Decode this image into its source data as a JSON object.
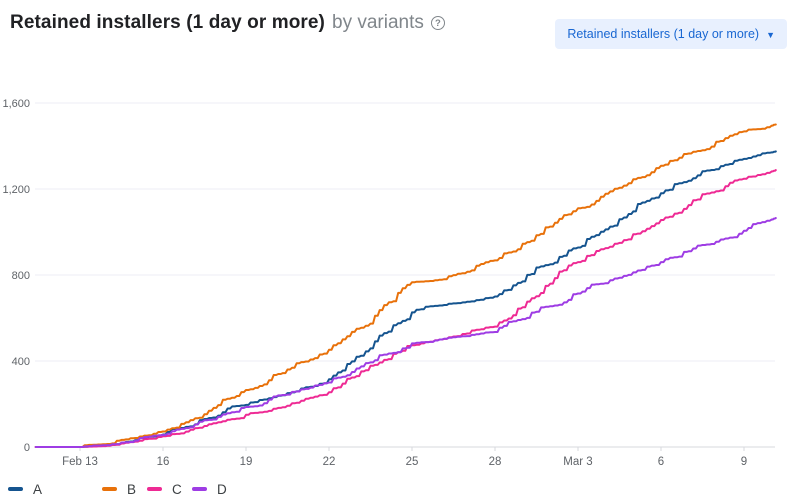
{
  "header": {
    "title": "Retained installers (1 day or more)",
    "subtitle": "by variants",
    "help_glyph": "?"
  },
  "metric_dropdown": {
    "label": "Retained installers (1 day or more)",
    "caret": "▼"
  },
  "colors": {
    "accent_blue": "#1967d2",
    "dropdown_bg": "#e8f0fe",
    "grid": "#eceef4",
    "axis_line": "#d7d9dd",
    "tick_label": "#5f6368",
    "title_text": "#202124",
    "subtitle_text": "#80868b"
  },
  "chart_data": {
    "type": "line",
    "title": "Retained installers (1 day or more) by variants",
    "xlabel": "",
    "ylabel": "",
    "ylim": [
      0,
      1600
    ],
    "grid": "horizontal",
    "legend_position": "bottom",
    "x_note": "x values are day numbers: 13 = Feb 13, 28 = Feb 28, 31 = Mar 3, 37 = Mar 9",
    "x": [
      11.4,
      12,
      13,
      14,
      15,
      16,
      17,
      18,
      19,
      20,
      21,
      22,
      23,
      24,
      25,
      26,
      27,
      28,
      29,
      30,
      31,
      32,
      33,
      34,
      35,
      36,
      37,
      38,
      38.15
    ],
    "x_ticks": [
      {
        "pos": 13,
        "label": "Feb 13"
      },
      {
        "pos": 16,
        "label": "16"
      },
      {
        "pos": 19,
        "label": "19"
      },
      {
        "pos": 22,
        "label": "22"
      },
      {
        "pos": 25,
        "label": "25"
      },
      {
        "pos": 28,
        "label": "28"
      },
      {
        "pos": 31,
        "label": "Mar 3"
      },
      {
        "pos": 34,
        "label": "6"
      },
      {
        "pos": 37,
        "label": "9"
      }
    ],
    "y_ticks": [
      {
        "v": 0,
        "label": "0"
      },
      {
        "v": 400,
        "label": "400"
      },
      {
        "v": 800,
        "label": "800"
      },
      {
        "v": 1200,
        "label": "1,200"
      },
      {
        "v": 1600,
        "label": "1,600"
      }
    ],
    "series": [
      {
        "name": "A",
        "color": "#15548f",
        "values": [
          0,
          0,
          0,
          10,
          32,
          58,
          96,
          146,
          196,
          232,
          272,
          315,
          420,
          530,
          626,
          658,
          676,
          700,
          770,
          850,
          928,
          1012,
          1096,
          1180,
          1238,
          1292,
          1340,
          1370,
          1375
        ]
      },
      {
        "name": "B",
        "color": "#e8710a",
        "values": [
          0,
          0,
          0,
          14,
          42,
          72,
          125,
          195,
          265,
          335,
          395,
          452,
          550,
          660,
          766,
          778,
          815,
          868,
          945,
          1025,
          1110,
          1178,
          1245,
          1308,
          1365,
          1420,
          1468,
          1495,
          1500
        ]
      },
      {
        "name": "C",
        "color": "#ee2a94",
        "values": [
          0,
          0,
          0,
          6,
          25,
          50,
          80,
          115,
          150,
          178,
          215,
          255,
          330,
          405,
          473,
          500,
          528,
          560,
          650,
          760,
          860,
          925,
          990,
          1056,
          1125,
          1190,
          1248,
          1282,
          1288
        ]
      },
      {
        "name": "D",
        "color": "#9e3ce4",
        "values": [
          0,
          0,
          0,
          9,
          30,
          56,
          92,
          140,
          186,
          235,
          268,
          300,
          365,
          430,
          482,
          500,
          516,
          535,
          595,
          655,
          714,
          762,
          812,
          860,
          910,
          955,
          1006,
          1058,
          1065
        ]
      }
    ]
  },
  "legend": {
    "items": [
      {
        "label": "A",
        "color": "#15548f"
      },
      {
        "label": "B",
        "color": "#e8710a"
      },
      {
        "label": "C",
        "color": "#ee2a94"
      },
      {
        "label": "D",
        "color": "#9e3ce4"
      }
    ]
  }
}
